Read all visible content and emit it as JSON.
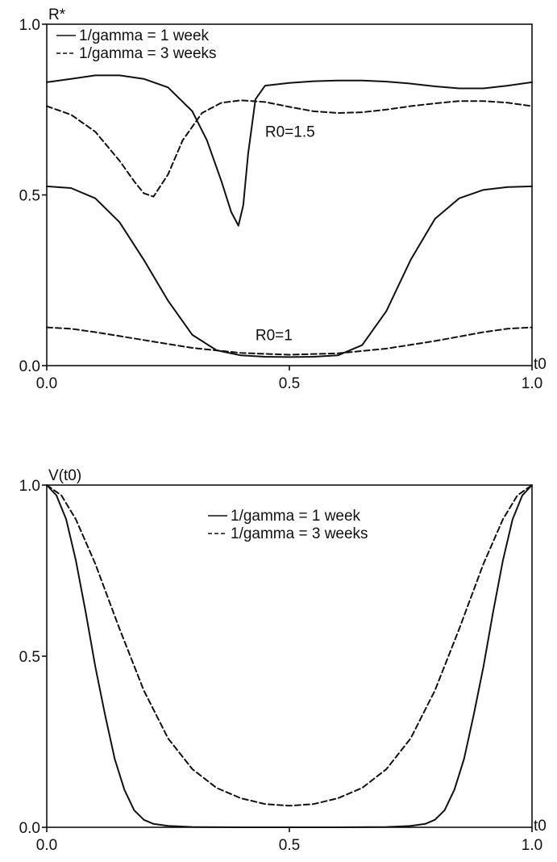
{
  "chart_data": [
    {
      "type": "line",
      "ylabel": "R*",
      "xlabel": "t0",
      "xlim": [
        0,
        1
      ],
      "ylim": [
        0,
        1
      ],
      "xticks": [
        "0.0",
        "0.5",
        "1.0"
      ],
      "yticks": [
        "0.0",
        "0.5",
        "1.0"
      ],
      "grid": false,
      "legend": {
        "placement": "top-left",
        "entries": [
          {
            "label": "1/gamma = 1 week",
            "style": "solid"
          },
          {
            "label": "1/gamma = 3 weeks",
            "style": "dashed"
          }
        ]
      },
      "annotations": [
        {
          "text": "R0=1.5",
          "x": 0.45,
          "y": 0.67
        },
        {
          "text": "R0=1",
          "x": 0.43,
          "y": 0.075
        }
      ],
      "series": [
        {
          "style": "solid",
          "group": "R0=1.5",
          "x": [
            0,
            0.05,
            0.1,
            0.15,
            0.2,
            0.25,
            0.3,
            0.33,
            0.36,
            0.38,
            0.395,
            0.405,
            0.415,
            0.43,
            0.45,
            0.5,
            0.55,
            0.6,
            0.65,
            0.7,
            0.75,
            0.8,
            0.85,
            0.9,
            0.95,
            1.0
          ],
          "y": [
            0.83,
            0.84,
            0.85,
            0.85,
            0.84,
            0.815,
            0.745,
            0.66,
            0.54,
            0.45,
            0.41,
            0.47,
            0.62,
            0.78,
            0.82,
            0.828,
            0.833,
            0.835,
            0.835,
            0.832,
            0.826,
            0.818,
            0.812,
            0.812,
            0.82,
            0.83
          ]
        },
        {
          "style": "dashed",
          "group": "R0=1.5",
          "x": [
            0,
            0.05,
            0.1,
            0.15,
            0.18,
            0.2,
            0.22,
            0.25,
            0.28,
            0.32,
            0.36,
            0.4,
            0.45,
            0.5,
            0.55,
            0.6,
            0.65,
            0.7,
            0.75,
            0.8,
            0.85,
            0.9,
            0.95,
            1.0
          ],
          "y": [
            0.76,
            0.735,
            0.685,
            0.6,
            0.54,
            0.505,
            0.495,
            0.56,
            0.66,
            0.74,
            0.77,
            0.777,
            0.772,
            0.758,
            0.745,
            0.74,
            0.742,
            0.75,
            0.76,
            0.768,
            0.775,
            0.775,
            0.77,
            0.76
          ]
        },
        {
          "style": "solid",
          "group": "R0=1",
          "x": [
            0,
            0.05,
            0.1,
            0.15,
            0.2,
            0.25,
            0.3,
            0.35,
            0.4,
            0.45,
            0.5,
            0.55,
            0.6,
            0.65,
            0.7,
            0.75,
            0.8,
            0.85,
            0.9,
            0.95,
            1.0
          ],
          "y": [
            0.525,
            0.52,
            0.49,
            0.42,
            0.31,
            0.19,
            0.09,
            0.045,
            0.03,
            0.026,
            0.025,
            0.026,
            0.03,
            0.06,
            0.16,
            0.31,
            0.43,
            0.49,
            0.515,
            0.523,
            0.525
          ]
        },
        {
          "style": "dashed",
          "group": "R0=1",
          "x": [
            0,
            0.05,
            0.1,
            0.2,
            0.3,
            0.4,
            0.5,
            0.6,
            0.7,
            0.8,
            0.9,
            0.95,
            1.0
          ],
          "y": [
            0.112,
            0.108,
            0.098,
            0.075,
            0.052,
            0.037,
            0.032,
            0.036,
            0.05,
            0.072,
            0.098,
            0.108,
            0.112
          ]
        }
      ]
    },
    {
      "type": "line",
      "ylabel": "V(t0)",
      "xlabel": "t0",
      "xlim": [
        0,
        1
      ],
      "ylim": [
        0,
        1
      ],
      "xticks": [
        "0.0",
        "0.5",
        "1.0"
      ],
      "yticks": [
        "0.0",
        "0.5",
        "1.0"
      ],
      "grid": false,
      "legend": {
        "placement": "top-center",
        "entries": [
          {
            "label": "1/gamma = 1 week",
            "style": "solid"
          },
          {
            "label": "1/gamma = 3 weeks",
            "style": "dashed"
          }
        ]
      },
      "series": [
        {
          "style": "solid",
          "x": [
            0,
            0.02,
            0.04,
            0.06,
            0.08,
            0.1,
            0.12,
            0.14,
            0.16,
            0.18,
            0.2,
            0.22,
            0.25,
            0.3,
            0.4,
            0.5,
            0.6,
            0.7,
            0.75,
            0.78,
            0.8,
            0.82,
            0.84,
            0.86,
            0.88,
            0.9,
            0.92,
            0.94,
            0.96,
            0.98,
            1.0
          ],
          "y": [
            1.0,
            0.97,
            0.9,
            0.78,
            0.63,
            0.47,
            0.33,
            0.2,
            0.11,
            0.05,
            0.022,
            0.01,
            0.004,
            0.001,
            0.0,
            0.0,
            0.0,
            0.001,
            0.004,
            0.01,
            0.022,
            0.05,
            0.11,
            0.2,
            0.33,
            0.47,
            0.63,
            0.78,
            0.9,
            0.97,
            1.0
          ]
        },
        {
          "style": "dashed",
          "x": [
            0,
            0.03,
            0.06,
            0.1,
            0.15,
            0.2,
            0.25,
            0.3,
            0.35,
            0.4,
            0.45,
            0.5,
            0.55,
            0.6,
            0.65,
            0.7,
            0.75,
            0.8,
            0.85,
            0.9,
            0.94,
            0.97,
            1.0
          ],
          "y": [
            1.0,
            0.97,
            0.9,
            0.77,
            0.58,
            0.4,
            0.26,
            0.17,
            0.115,
            0.085,
            0.068,
            0.063,
            0.068,
            0.085,
            0.115,
            0.17,
            0.26,
            0.4,
            0.58,
            0.77,
            0.9,
            0.97,
            1.0
          ]
        }
      ]
    }
  ]
}
